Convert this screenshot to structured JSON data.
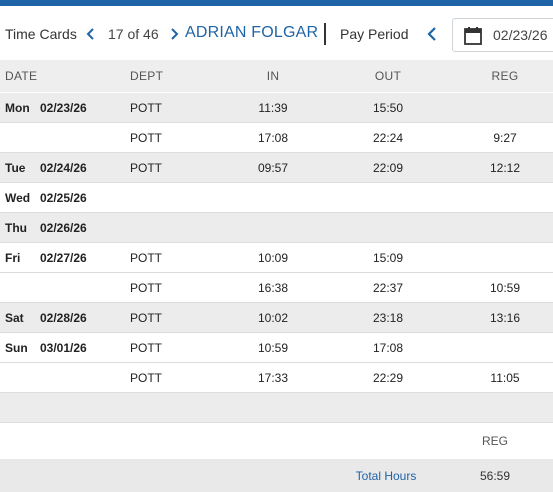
{
  "toolbar": {
    "title": "Time Cards",
    "record_position": "17 of 46",
    "employee_name": "ADRIAN FOLGAR",
    "pay_period_label": "Pay Period",
    "pay_period_date": "02/23/26",
    "prev_icon": "chevron-left-icon",
    "next_icon": "chevron-right-icon",
    "calendar_icon": "calendar-icon",
    "accent_color": "#1f64a6"
  },
  "table": {
    "columns": {
      "date": "DATE",
      "dept": "DEPT",
      "in": "IN",
      "out": "OUT",
      "reg": "REG"
    },
    "rows": [
      {
        "day": "Mon",
        "date": "02/23/26",
        "dept": "POTT",
        "in": "11:39",
        "out": "15:50",
        "reg": ""
      },
      {
        "day": "",
        "date": "",
        "dept": "POTT",
        "in": "17:08",
        "out": "22:24",
        "reg": "9:27"
      },
      {
        "day": "Tue",
        "date": "02/24/26",
        "dept": "POTT",
        "in": "09:57",
        "out": "22:09",
        "reg": "12:12"
      },
      {
        "day": "Wed",
        "date": "02/25/26",
        "dept": "",
        "in": "",
        "out": "",
        "reg": ""
      },
      {
        "day": "Thu",
        "date": "02/26/26",
        "dept": "",
        "in": "",
        "out": "",
        "reg": ""
      },
      {
        "day": "Fri",
        "date": "02/27/26",
        "dept": "POTT",
        "in": "10:09",
        "out": "15:09",
        "reg": ""
      },
      {
        "day": "",
        "date": "",
        "dept": "POTT",
        "in": "16:38",
        "out": "22:37",
        "reg": "10:59"
      },
      {
        "day": "Sat",
        "date": "02/28/26",
        "dept": "POTT",
        "in": "10:02",
        "out": "23:18",
        "reg": "13:16"
      },
      {
        "day": "Sun",
        "date": "03/01/26",
        "dept": "POTT",
        "in": "10:59",
        "out": "17:08",
        "reg": ""
      },
      {
        "day": "",
        "date": "",
        "dept": "POTT",
        "in": "17:33",
        "out": "22:29",
        "reg": "11:05"
      }
    ]
  },
  "summary": {
    "reg_header": "REG",
    "total_label": "Total Hours",
    "total_reg": "56:59"
  }
}
